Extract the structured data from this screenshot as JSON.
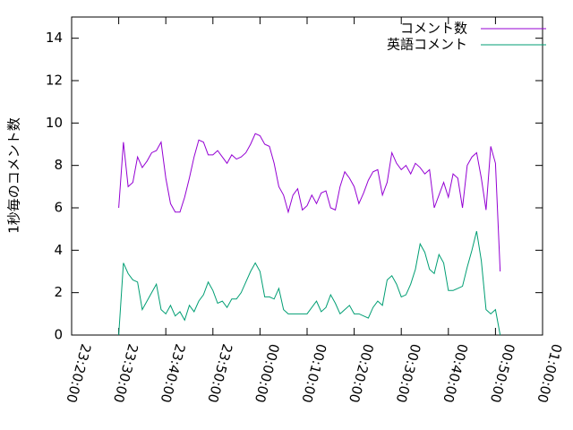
{
  "chart_data": {
    "type": "line",
    "y_label": "1秒毎のコメント数",
    "x": [
      -30,
      -29,
      -28,
      -27,
      -26,
      -25,
      -24,
      -23,
      -22,
      -21,
      -20,
      -19,
      -18,
      -17,
      -16,
      -15,
      -14,
      -13,
      -12,
      -11,
      -10,
      -9,
      -8,
      -7,
      -6,
      -5,
      -4,
      -3,
      -2,
      -1,
      0,
      1,
      2,
      3,
      4,
      5,
      6,
      7,
      8,
      9,
      10,
      11,
      12,
      13,
      14,
      15,
      16,
      17,
      18,
      19,
      20,
      21,
      22,
      23,
      24,
      25,
      26,
      27,
      28,
      29,
      30,
      31,
      32,
      33,
      34,
      35,
      36,
      37,
      38,
      39,
      40,
      41,
      42,
      43,
      44,
      45,
      46,
      47,
      48,
      49,
      50,
      51
    ],
    "series": [
      {
        "name": "コメント数",
        "color": "#9400d3",
        "values": [
          6.0,
          9.1,
          7.0,
          7.2,
          8.4,
          7.9,
          8.2,
          8.6,
          8.7,
          9.1,
          7.4,
          6.2,
          5.8,
          5.8,
          6.5,
          7.4,
          8.4,
          9.2,
          9.1,
          8.5,
          8.5,
          8.7,
          8.4,
          8.1,
          8.5,
          8.3,
          8.4,
          8.6,
          9.0,
          9.5,
          9.4,
          9.0,
          8.9,
          8.1,
          7.0,
          6.6,
          5.8,
          6.6,
          6.9,
          5.9,
          6.1,
          6.6,
          6.2,
          6.7,
          6.8,
          6.0,
          5.9,
          7.0,
          7.7,
          7.4,
          7.0,
          6.2,
          6.7,
          7.3,
          7.7,
          7.8,
          6.6,
          7.2,
          8.6,
          8.1,
          7.8,
          8.0,
          7.6,
          8.1,
          7.9,
          7.6,
          7.8,
          6.0,
          6.6,
          7.2,
          6.5,
          7.6,
          7.4,
          6.0,
          8.0,
          8.4,
          8.6,
          7.4,
          5.9,
          8.9,
          8.1,
          3.0
        ]
      },
      {
        "name": "英語コメント",
        "color": "#009e73",
        "values": [
          0.0,
          3.4,
          2.9,
          2.6,
          2.5,
          1.2,
          1.6,
          2.0,
          2.4,
          1.2,
          1.0,
          1.4,
          0.9,
          1.1,
          0.7,
          1.4,
          1.1,
          1.6,
          1.9,
          2.5,
          2.1,
          1.5,
          1.6,
          1.3,
          1.7,
          1.7,
          2.0,
          2.5,
          3.0,
          3.4,
          3.0,
          1.8,
          1.8,
          1.7,
          2.2,
          1.2,
          1.0,
          1.0,
          1.0,
          1.0,
          1.0,
          1.3,
          1.6,
          1.1,
          1.3,
          1.9,
          1.5,
          1.0,
          1.2,
          1.4,
          1.0,
          1.0,
          0.9,
          0.8,
          1.3,
          1.6,
          1.4,
          2.6,
          2.8,
          2.4,
          1.8,
          1.9,
          2.4,
          3.1,
          4.3,
          3.9,
          3.1,
          2.9,
          3.8,
          3.4,
          2.1,
          2.1,
          2.2,
          2.3,
          3.2,
          4.0,
          4.9,
          3.5,
          1.2,
          1.0,
          1.2,
          0.0
        ]
      }
    ],
    "xlim": [
      -40,
      60
    ],
    "xticks": [
      {
        "value": -40,
        "label": "23:20:00"
      },
      {
        "value": -30,
        "label": "23:30:00"
      },
      {
        "value": -20,
        "label": "23:40:00"
      },
      {
        "value": -10,
        "label": "23:50:00"
      },
      {
        "value": 0,
        "label": "00:00:00"
      },
      {
        "value": 10,
        "label": "00:10:00"
      },
      {
        "value": 20,
        "label": "00:20:00"
      },
      {
        "value": 30,
        "label": "00:30:00"
      },
      {
        "value": 40,
        "label": "00:40:00"
      },
      {
        "value": 50,
        "label": "00:50:00"
      },
      {
        "value": 60,
        "label": "01:00:00"
      }
    ],
    "ylim": [
      0,
      15
    ],
    "yticks": [
      0,
      2,
      4,
      6,
      8,
      10,
      12,
      14
    ],
    "grid": false,
    "legend": "top-right"
  }
}
